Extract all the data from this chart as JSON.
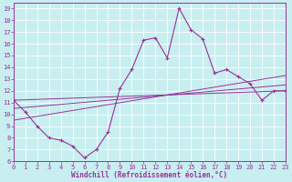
{
  "xlabel": "Windchill (Refroidissement éolien,°C)",
  "bg_color": "#c8eef0",
  "line_color": "#993399",
  "xmin": 0,
  "xmax": 23,
  "ymin": 6,
  "ymax": 19.5,
  "main_x": [
    0,
    1,
    2,
    3,
    4,
    5,
    6,
    7,
    8,
    9,
    10,
    11,
    12,
    13,
    14,
    15,
    16,
    17,
    18,
    19,
    20,
    21,
    22,
    23
  ],
  "main_y": [
    11.2,
    10.2,
    9.0,
    8.0,
    7.8,
    7.3,
    6.3,
    7.0,
    8.5,
    12.2,
    13.8,
    16.3,
    16.5,
    14.8,
    19.0,
    17.2,
    16.4,
    13.5,
    13.8,
    13.2,
    12.6,
    11.2,
    12.0,
    12.0
  ],
  "trendlines": [
    {
      "x": [
        0,
        23
      ],
      "y": [
        11.2,
        12.0
      ]
    },
    {
      "x": [
        0,
        23
      ],
      "y": [
        10.5,
        12.5
      ]
    },
    {
      "x": [
        0,
        23
      ],
      "y": [
        9.5,
        13.3
      ]
    }
  ],
  "xticks": [
    0,
    1,
    2,
    3,
    4,
    5,
    6,
    7,
    8,
    9,
    10,
    11,
    12,
    13,
    14,
    15,
    16,
    17,
    18,
    19,
    20,
    21,
    22,
    23
  ],
  "yticks": [
    6,
    7,
    8,
    9,
    10,
    11,
    12,
    13,
    14,
    15,
    16,
    17,
    18,
    19
  ],
  "tick_fontsize": 5.0,
  "xlabel_fontsize": 5.5
}
